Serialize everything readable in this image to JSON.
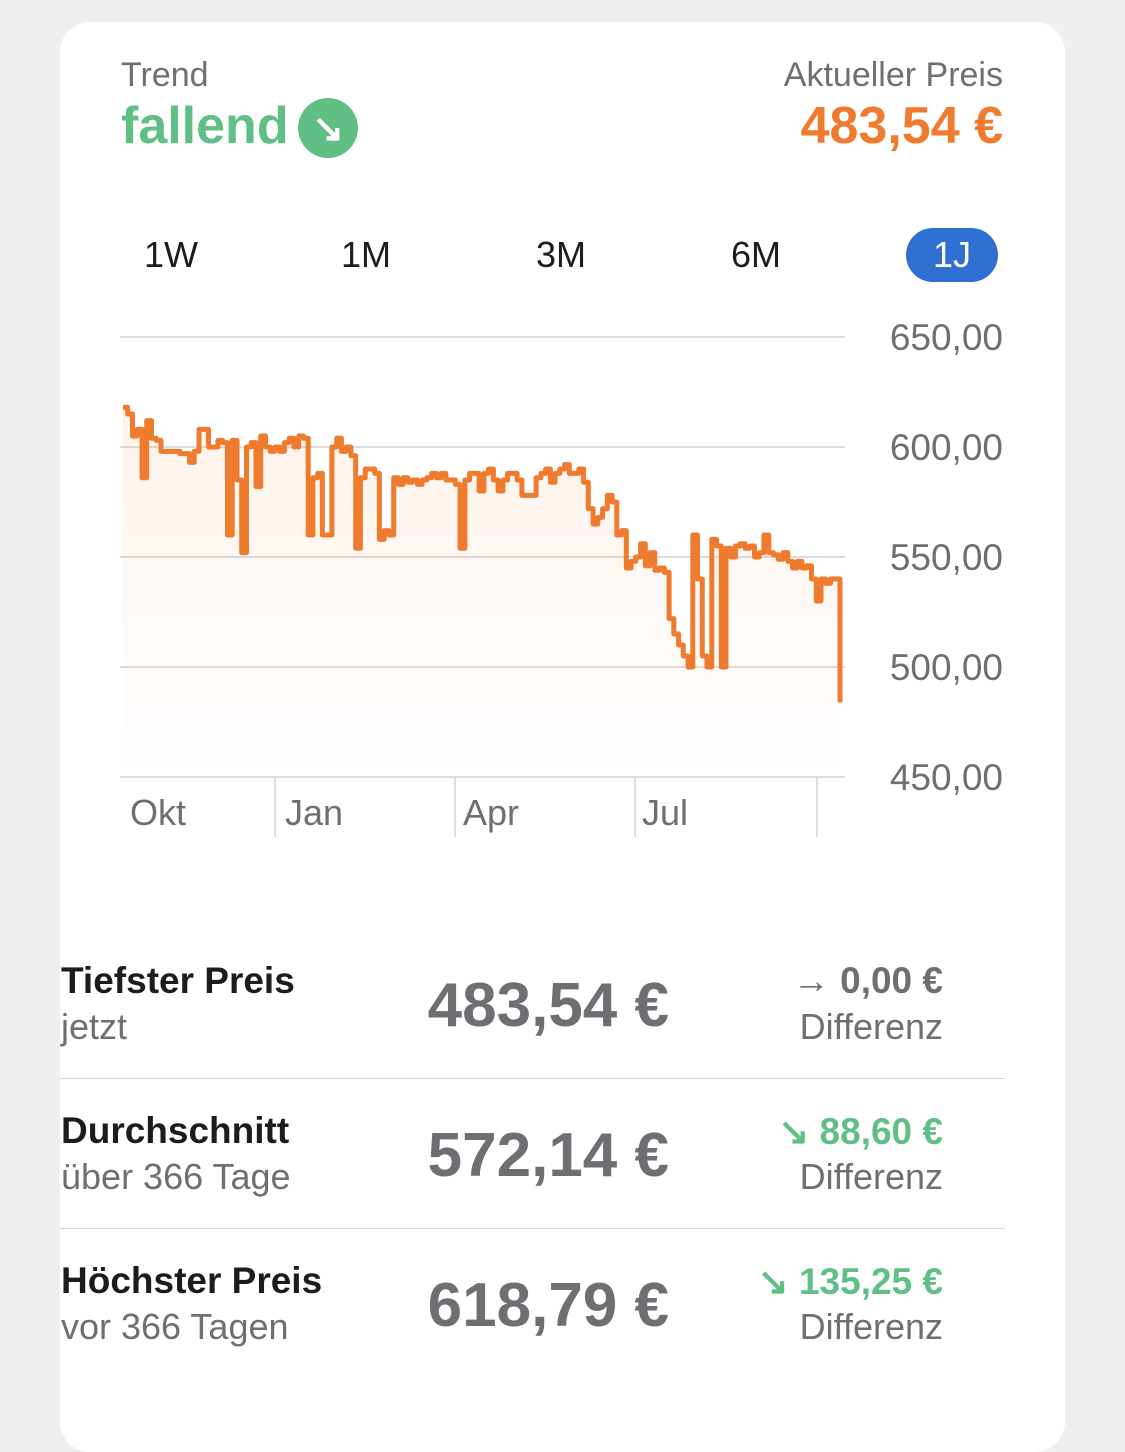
{
  "header": {
    "trend_label": "Trend",
    "trend_value": "fallend",
    "trend_icon": "↘",
    "price_label": "Aktueller Preis",
    "price_value": "483,54 €"
  },
  "colors": {
    "trend_green": "#5fbf85",
    "price_orange": "#ef7b2f",
    "active_tab_blue": "#2f6fd2"
  },
  "ranges": [
    {
      "label": "1W"
    },
    {
      "label": "1M"
    },
    {
      "label": "3M"
    },
    {
      "label": "6M"
    },
    {
      "label": "1J",
      "active": true
    }
  ],
  "chart_data": {
    "type": "line",
    "yticks": [
      "650,00",
      "600,00",
      "550,00",
      "500,00",
      "450,00"
    ],
    "ylim": [
      450,
      650
    ],
    "xticks": [
      "Okt",
      "Jan",
      "Apr",
      "Jul"
    ],
    "series": [
      {
        "values": [
          618,
          615,
          605,
          608,
          586,
          612,
          604,
          603,
          598,
          598,
          598,
          598,
          597,
          597,
          593,
          598,
          608,
          608,
          600,
          600,
          603,
          602,
          560,
          603,
          585,
          552,
          600,
          602,
          582,
          605,
          600,
          598,
          600,
          598,
          602,
          604,
          600,
          605,
          604,
          560,
          586,
          588,
          560,
          560,
          600,
          604,
          598,
          600,
          596,
          554,
          586,
          590,
          590,
          588,
          558,
          562,
          560,
          586,
          583,
          586,
          584,
          585,
          583,
          585,
          586,
          588,
          586,
          588,
          585,
          585,
          583,
          554,
          585,
          588,
          588,
          580,
          588,
          590,
          585,
          580,
          585,
          588,
          588,
          585,
          578,
          578,
          578,
          586,
          588,
          590,
          584,
          588,
          590,
          592,
          588,
          588,
          590,
          584,
          572,
          565,
          568,
          572,
          578,
          575,
          560,
          562,
          545,
          548,
          550,
          556,
          546,
          552,
          544,
          545,
          543,
          522,
          515,
          510,
          505,
          500,
          560,
          540,
          505,
          500,
          558,
          555,
          500,
          554,
          550,
          555,
          556,
          554,
          555,
          550,
          552,
          560,
          552,
          551,
          549,
          552,
          548,
          545,
          548,
          545,
          546,
          540,
          530,
          540,
          538,
          540,
          540,
          484
        ]
      }
    ]
  },
  "stats": [
    {
      "title": "Tiefster Preis",
      "sub": "jetzt",
      "value": "483,54 €",
      "diff_icon": "→",
      "diff": "0,00 €",
      "diff_label": "Differenz",
      "diff_color": "#6e6e73"
    },
    {
      "title": "Durchschnitt",
      "sub": "über 366 Tage",
      "value": "572,14 €",
      "diff_icon": "↘",
      "diff": "88,60 €",
      "diff_label": "Differenz",
      "diff_color": "#5fbf85"
    },
    {
      "title": "Höchster Preis",
      "sub": "vor 366 Tagen",
      "value": "618,79 €",
      "diff_icon": "↘",
      "diff": "135,25 €",
      "diff_label": "Differenz",
      "diff_color": "#5fbf85"
    }
  ]
}
